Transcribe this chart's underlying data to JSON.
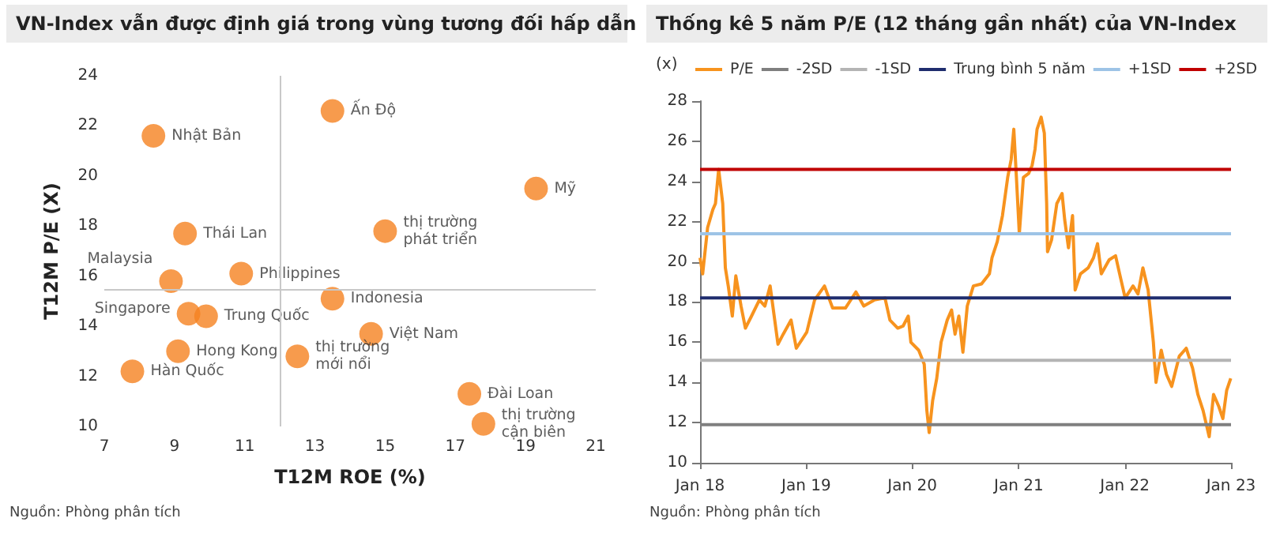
{
  "chart_data": [
    {
      "type": "scatter",
      "title": "VN-Index vẫn được định giá trong vùng tương đối hấp dẫn",
      "xlabel": "T12M ROE (%)",
      "ylabel": "T12M P/E (X)",
      "xlim": [
        7,
        21
      ],
      "xticks": [
        7,
        9,
        11,
        13,
        15,
        17,
        19,
        21
      ],
      "ylim": [
        10,
        24
      ],
      "yticks": [
        10,
        12,
        14,
        16,
        18,
        20,
        22,
        24
      ],
      "grid": false,
      "legend": false,
      "marker": "circle",
      "ref_lines": [
        {
          "axis": "x",
          "value": 12,
          "color": "#c8c8c8"
        },
        {
          "axis": "y",
          "value": 15.5,
          "color": "#c8c8c8"
        }
      ],
      "annotations": [
        "Nguồn: Phòng phân tích"
      ],
      "series": [
        {
          "name": "Ấn Độ",
          "color": "#f58220",
          "x": [
            13.5
          ],
          "values": [
            22.6
          ]
        },
        {
          "name": "Nhật Bản",
          "color": "#f58220",
          "x": [
            8.4
          ],
          "values": [
            21.6
          ]
        },
        {
          "name": "Mỹ",
          "color": "#f58220",
          "x": [
            19.3
          ],
          "values": [
            19.5
          ]
        },
        {
          "name": "Thái Lan",
          "color": "#f58220",
          "x": [
            9.3
          ],
          "values": [
            17.7
          ]
        },
        {
          "name": "thị trường phát triển",
          "color": "#f58220",
          "x": [
            15.0
          ],
          "values": [
            17.8
          ]
        },
        {
          "name": "Malaysia",
          "color": "#f58220",
          "x": [
            8.9
          ],
          "values": [
            15.8
          ]
        },
        {
          "name": "Philippines",
          "color": "#f58220",
          "x": [
            10.9
          ],
          "values": [
            16.1
          ]
        },
        {
          "name": "Indonesia",
          "color": "#f58220",
          "x": [
            13.5
          ],
          "values": [
            15.1
          ]
        },
        {
          "name": "Singapore",
          "color": "#f58220",
          "x": [
            9.4
          ],
          "values": [
            14.5
          ]
        },
        {
          "name": "Trung Quốc",
          "color": "#f58220",
          "x": [
            9.9
          ],
          "values": [
            14.4
          ]
        },
        {
          "name": "Việt Nam",
          "color": "#f58220",
          "x": [
            14.6
          ],
          "values": [
            13.7
          ]
        },
        {
          "name": "Hong Kong",
          "color": "#f58220",
          "x": [
            9.1
          ],
          "values": [
            13.0
          ]
        },
        {
          "name": "Hàn Quốc",
          "color": "#f58220",
          "x": [
            7.8
          ],
          "values": [
            12.2
          ]
        },
        {
          "name": "thị trường mới nổi",
          "color": "#f58220",
          "x": [
            12.5
          ],
          "values": [
            12.8
          ]
        },
        {
          "name": "Đài Loan",
          "color": "#f58220",
          "x": [
            17.4
          ],
          "values": [
            11.3
          ]
        },
        {
          "name": "thị trường cận biên",
          "color": "#f58220",
          "x": [
            17.8
          ],
          "values": [
            10.1
          ]
        }
      ]
    },
    {
      "type": "line",
      "title": "Thống kê 5 năm P/E (12 tháng gần nhất) của VN-Index",
      "ylabel": "(x)",
      "xlim": [
        "2018-01-01",
        "2023-01-01"
      ],
      "xticks": [
        {
          "value": "2018-01-01",
          "label": "Jan 18"
        },
        {
          "value": "2019-01-01",
          "label": "Jan 19"
        },
        {
          "value": "2020-01-01",
          "label": "Jan 20"
        },
        {
          "value": "2021-01-01",
          "label": "Jan 21"
        },
        {
          "value": "2022-01-01",
          "label": "Jan 22"
        },
        {
          "value": "2023-01-01",
          "label": "Jan 23"
        }
      ],
      "ylim": [
        10,
        28
      ],
      "yticks": [
        10,
        12,
        14,
        16,
        18,
        20,
        22,
        24,
        26,
        28
      ],
      "grid": false,
      "legend": "top",
      "marker": "none",
      "annotations": [
        "Nguồn: Phòng phân tích"
      ],
      "series": [
        {
          "name": "P/E",
          "color": "#f7931e",
          "x": [
            "2018-01-01",
            "2018-01-10",
            "2018-01-27",
            "2018-02-14",
            "2018-02-23",
            "2018-03-06",
            "2018-03-20",
            "2018-03-29",
            "2018-04-08",
            "2018-04-22",
            "2018-05-04",
            "2018-05-22",
            "2018-06-06",
            "2018-06-27",
            "2018-07-24",
            "2018-08-12",
            "2018-08-30",
            "2018-09-26",
            "2018-10-14",
            "2018-11-10",
            "2018-11-28",
            "2019-01-03",
            "2019-01-30",
            "2019-03-05",
            "2019-04-02",
            "2019-05-16",
            "2019-06-21",
            "2019-07-18",
            "2019-08-23",
            "2019-09-29",
            "2019-10-16",
            "2019-11-12",
            "2019-11-30",
            "2019-12-18",
            "2019-12-27",
            "2020-01-23",
            "2020-02-11",
            "2020-02-20",
            "2020-02-28",
            "2020-03-11",
            "2020-03-25",
            "2020-04-09",
            "2020-04-30",
            "2020-05-15",
            "2020-05-27",
            "2020-06-09",
            "2020-06-23",
            "2020-07-08",
            "2020-07-29",
            "2020-08-26",
            "2020-09-22",
            "2020-10-01",
            "2020-10-19",
            "2020-11-06",
            "2020-11-24",
            "2020-12-06",
            "2020-12-15",
            "2020-12-24",
            "2021-01-03",
            "2021-01-17",
            "2021-02-04",
            "2021-02-16",
            "2021-02-26",
            "2021-03-05",
            "2021-03-19",
            "2021-03-30",
            "2021-04-07",
            "2021-04-10",
            "2021-04-24",
            "2021-05-12",
            "2021-05-30",
            "2021-06-08",
            "2021-06-21",
            "2021-07-05",
            "2021-07-14",
            "2021-08-01",
            "2021-08-28",
            "2021-09-15",
            "2021-09-29",
            "2021-10-12",
            "2021-11-08",
            "2021-11-30",
            "2021-12-14",
            "2022-01-02",
            "2022-01-29",
            "2022-02-15",
            "2022-03-04",
            "2022-03-22",
            "2022-04-09",
            "2022-04-18",
            "2022-05-06",
            "2022-05-24",
            "2022-06-11",
            "2022-07-07",
            "2022-07-31",
            "2022-08-22",
            "2022-09-09",
            "2022-09-27",
            "2022-10-18",
            "2022-11-02",
            "2022-11-20",
            "2022-12-04",
            "2022-12-17",
            "2022-12-31"
          ],
          "values": [
            20.2,
            19.4,
            21.7,
            22.6,
            22.9,
            24.6,
            22.9,
            19.7,
            18.8,
            17.3,
            19.3,
            17.8,
            16.7,
            17.3,
            18.1,
            17.8,
            18.8,
            15.9,
            16.4,
            17.1,
            15.7,
            16.5,
            18.1,
            18.8,
            17.7,
            17.7,
            18.5,
            17.8,
            18.1,
            18.2,
            17.1,
            16.7,
            16.8,
            17.3,
            16.0,
            15.6,
            14.9,
            12.6,
            11.5,
            13.1,
            14.2,
            16.0,
            17.1,
            17.6,
            16.4,
            17.3,
            15.5,
            17.8,
            18.8,
            18.9,
            19.4,
            20.2,
            21.0,
            22.3,
            24.2,
            25.1,
            26.6,
            24.2,
            21.4,
            24.2,
            24.4,
            24.8,
            25.6,
            26.6,
            27.2,
            26.4,
            22.9,
            20.5,
            21.1,
            22.9,
            23.4,
            22.1,
            20.7,
            22.3,
            18.6,
            19.4,
            19.7,
            20.2,
            20.9,
            19.4,
            20.1,
            20.3,
            19.4,
            18.2,
            18.8,
            18.4,
            19.7,
            18.6,
            16.0,
            14.0,
            15.6,
            14.4,
            13.8,
            15.3,
            15.7,
            14.7,
            13.4,
            12.6,
            11.3,
            13.4,
            12.8,
            12.2,
            13.6,
            14.2
          ]
        },
        {
          "name": "-2SD",
          "color": "#7f7f7f",
          "x": [
            "2018-01-01",
            "2023-01-01"
          ],
          "values": [
            11.9,
            11.9
          ]
        },
        {
          "name": "-1SD",
          "color": "#b4b4b4",
          "x": [
            "2018-01-01",
            "2023-01-01"
          ],
          "values": [
            15.1,
            15.1
          ]
        },
        {
          "name": "Trung bình 5 năm",
          "color": "#1f2d6e",
          "x": [
            "2018-01-01",
            "2023-01-01"
          ],
          "values": [
            18.2,
            18.2
          ]
        },
        {
          "name": "+1SD",
          "color": "#9dc3e6",
          "x": [
            "2018-01-01",
            "2023-01-01"
          ],
          "values": [
            21.4,
            21.4
          ]
        },
        {
          "name": "+2SD",
          "color": "#c00000",
          "x": [
            "2018-01-01",
            "2023-01-01"
          ],
          "values": [
            24.6,
            24.6
          ]
        }
      ]
    }
  ]
}
